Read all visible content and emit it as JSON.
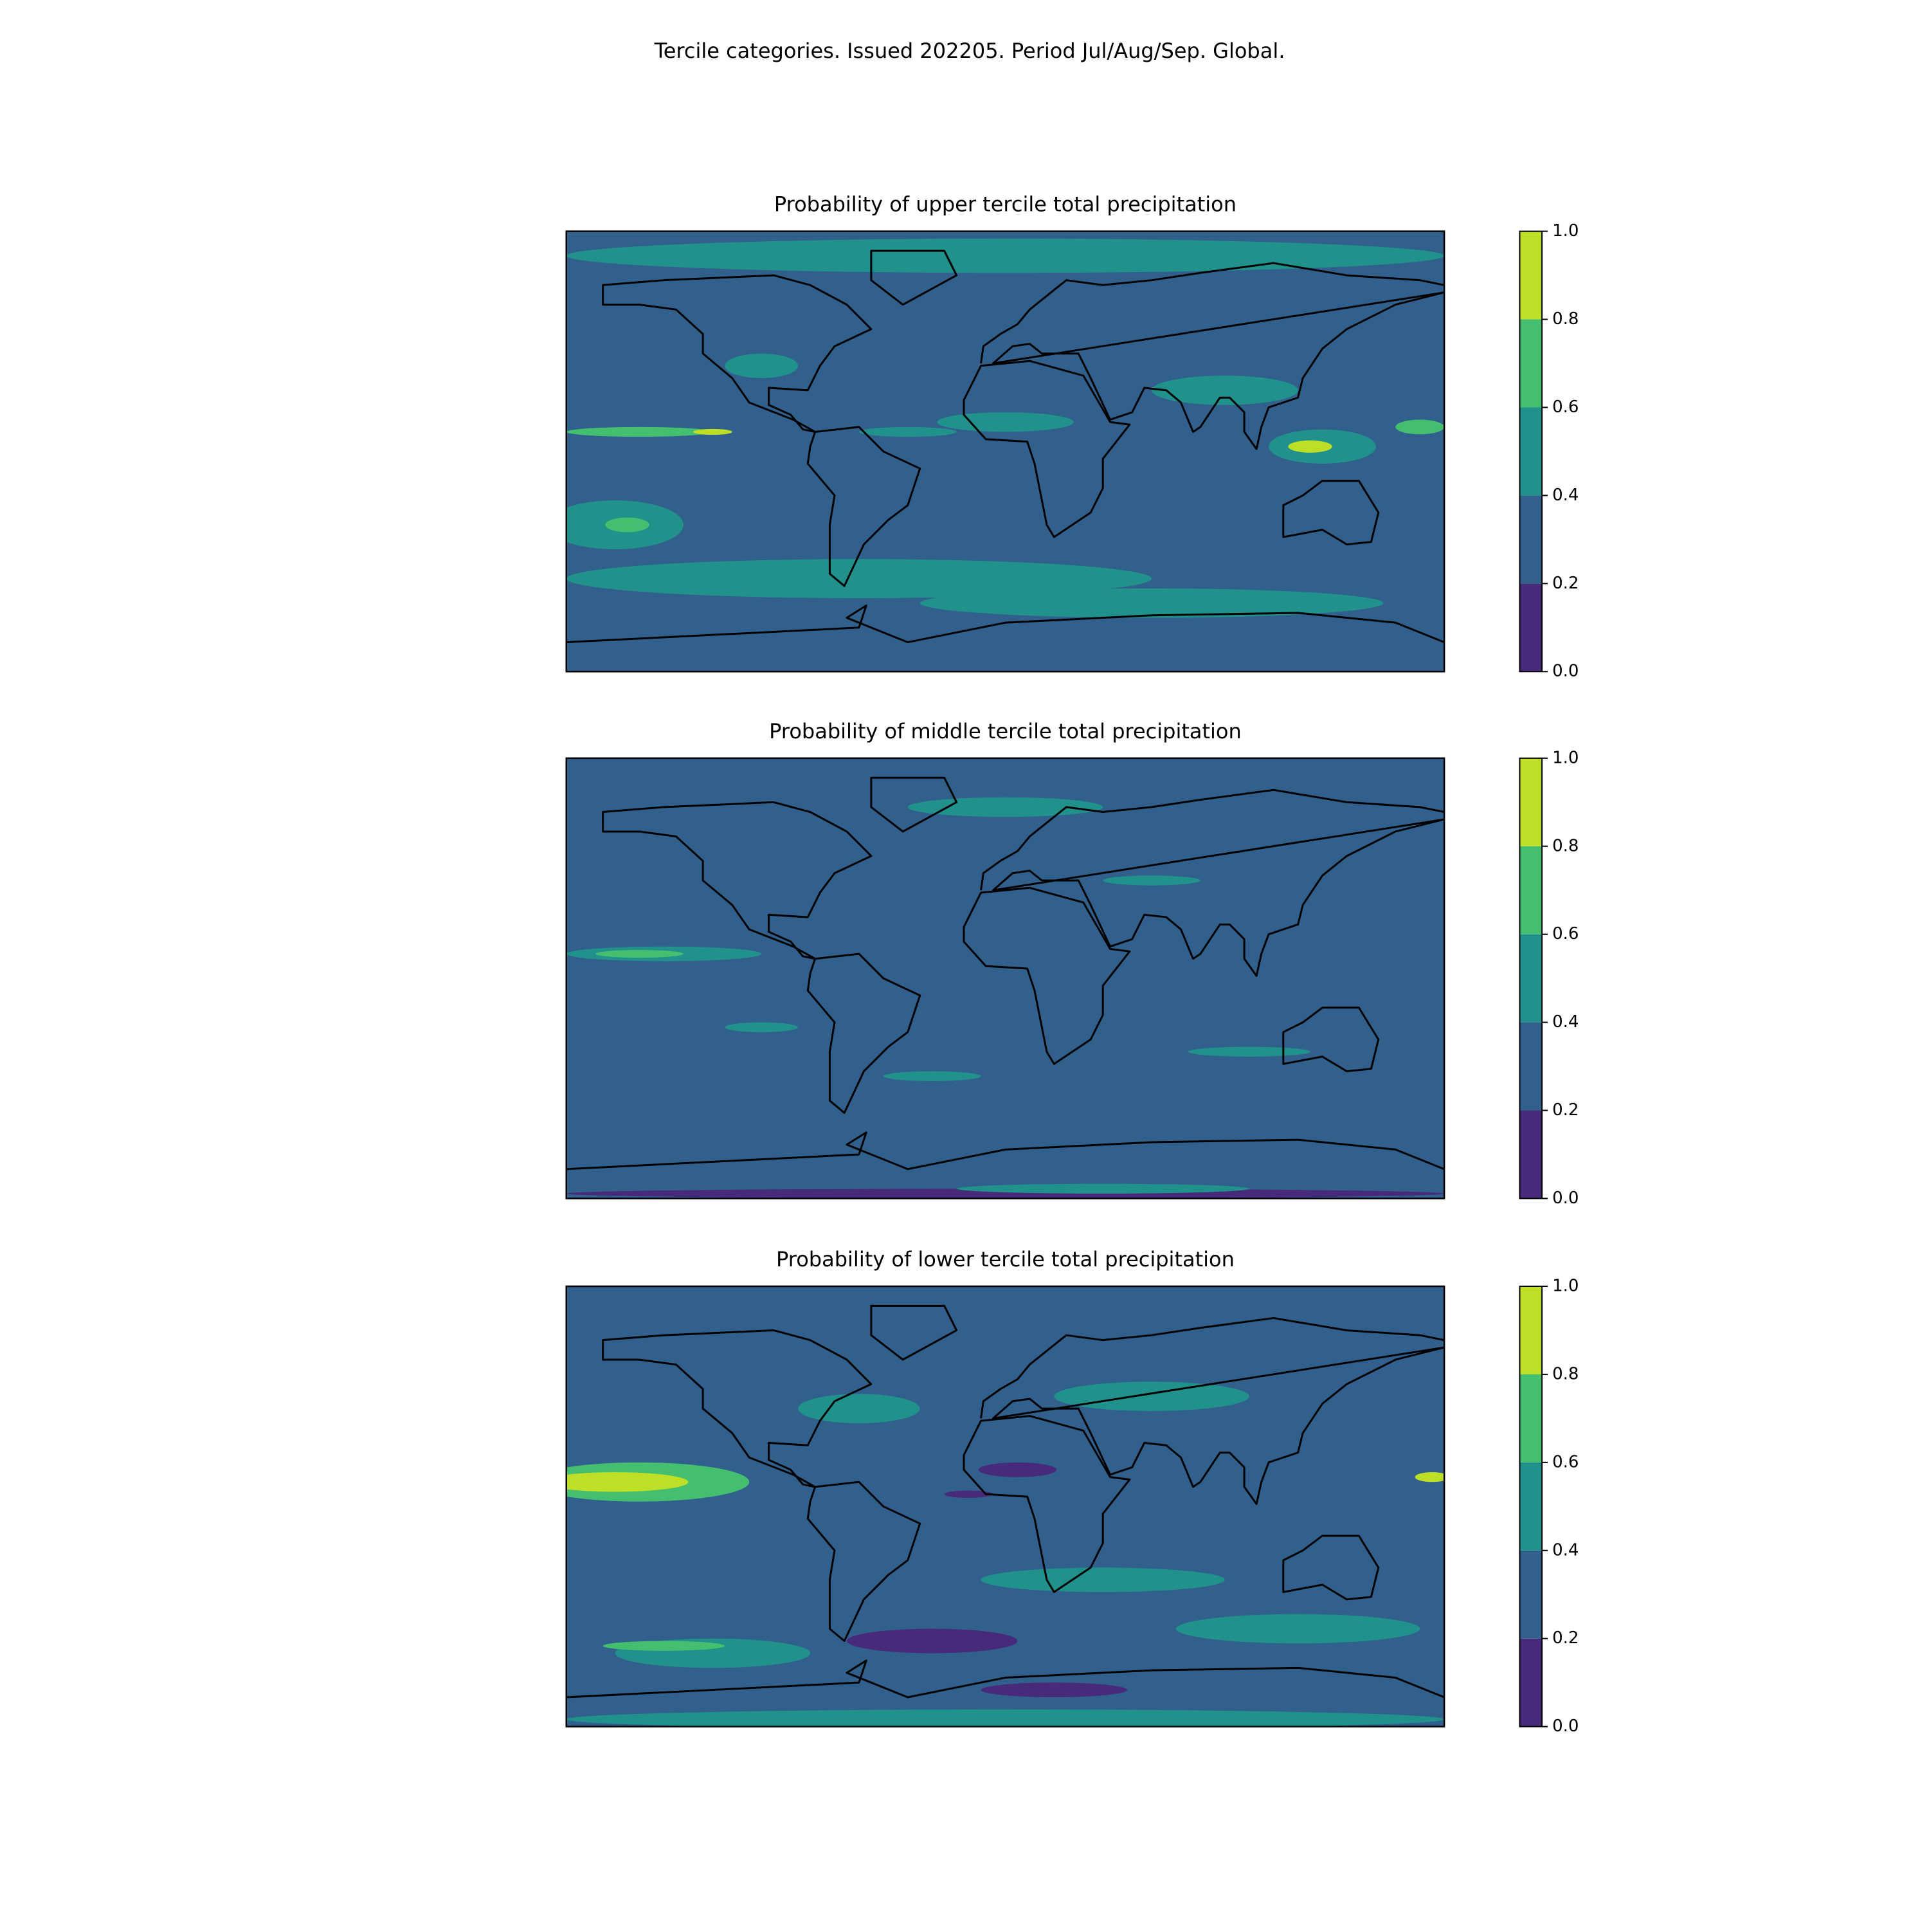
{
  "title": "Tercile categories. Issued 202205. Period Jul/Aug/Sep. Global.",
  "chart_data": [
    {
      "type": "contour-map",
      "title": "Probability of upper tercile total precipitation",
      "colors": [
        "#472a7a",
        "#32608d",
        "#21918c",
        "#44bf70",
        "#bddf26"
      ],
      "ylim": [
        0,
        1
      ],
      "yticks": [
        {
          "value": 0,
          "label": "0.0"
        },
        {
          "value": 0.2,
          "label": "0.2"
        },
        {
          "value": 0.4,
          "label": "0.4"
        },
        {
          "value": 0.6,
          "label": "0.6"
        },
        {
          "value": 0.8,
          "label": "0.8"
        },
        {
          "value": 1,
          "label": "1.0"
        }
      ]
    },
    {
      "type": "contour-map",
      "title": "Probability of middle tercile total precipitation",
      "colors": [
        "#472a7a",
        "#32608d",
        "#21918c",
        "#44bf70",
        "#bddf26"
      ],
      "ylim": [
        0,
        1
      ],
      "yticks": [
        {
          "value": 0,
          "label": "0.0"
        },
        {
          "value": 0.2,
          "label": "0.2"
        },
        {
          "value": 0.4,
          "label": "0.4"
        },
        {
          "value": 0.6,
          "label": "0.6"
        },
        {
          "value": 0.8,
          "label": "0.8"
        },
        {
          "value": 1,
          "label": "1.0"
        }
      ]
    },
    {
      "type": "contour-map",
      "title": "Probability of lower tercile total precipitation",
      "colors": [
        "#472a7a",
        "#32608d",
        "#21918c",
        "#44bf70",
        "#bddf26"
      ],
      "ylim": [
        0,
        1
      ],
      "yticks": [
        {
          "value": 0,
          "label": "0.0"
        },
        {
          "value": 0.2,
          "label": "0.2"
        },
        {
          "value": 0.4,
          "label": "0.4"
        },
        {
          "value": 0.6,
          "label": "0.6"
        },
        {
          "value": 0.8,
          "label": "0.8"
        },
        {
          "value": 1,
          "label": "1.0"
        }
      ]
    }
  ]
}
